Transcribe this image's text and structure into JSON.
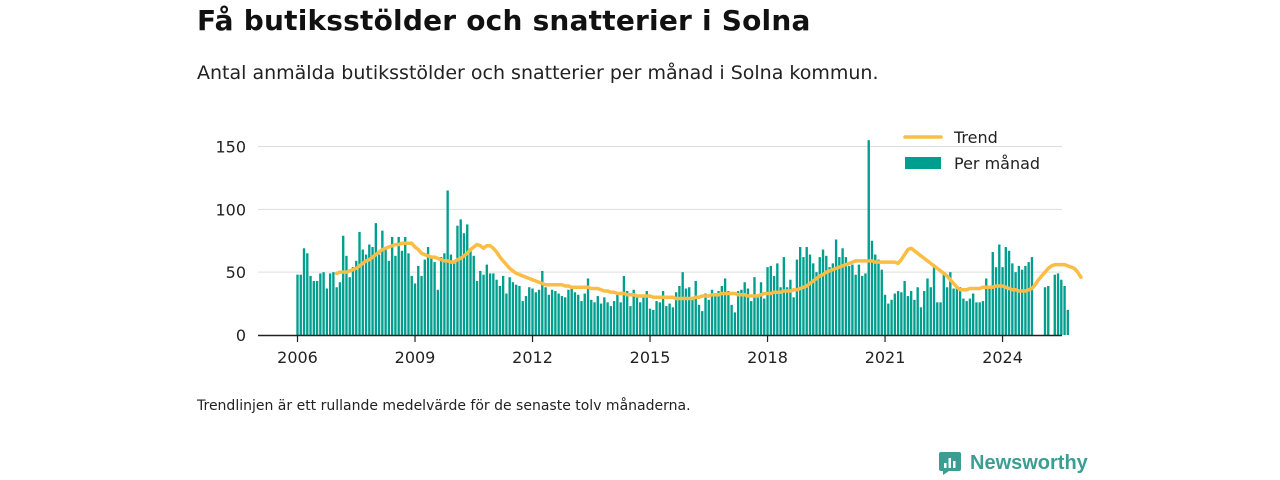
{
  "header": {
    "title": "Få butiksstölder och snatterier i Solna",
    "subtitle": "Antal anmälda butiksstölder och snatterier per månad i Solna kommun."
  },
  "footer": {
    "note": "Trendlinjen är ett rullande medelvärde för de senaste tolv månaderna.",
    "brand": "Newsworthy"
  },
  "colors": {
    "bars": "#009e8e",
    "trend": "#fbbd45",
    "grid": "#dddddd",
    "brand": "#3b9e93"
  },
  "chart_data": {
    "type": "bar",
    "x_start": "2006-01",
    "x_end": "2024-07",
    "xticks": [
      "2006",
      "2009",
      "2012",
      "2015",
      "2018",
      "2021",
      "2024"
    ],
    "yticks": [
      "0",
      "50",
      "100",
      "150"
    ],
    "ylim": [
      0,
      160
    ],
    "grid": true,
    "legend_position": "top-right",
    "series": [
      {
        "name": "Per månad",
        "type": "bar",
        "values": [
          48,
          48,
          69,
          65,
          47,
          43,
          43,
          49,
          50,
          37,
          49,
          50,
          38,
          42,
          79,
          63,
          46,
          54,
          59,
          82,
          68,
          64,
          72,
          70,
          89,
          64,
          83,
          68,
          59,
          78,
          63,
          78,
          67,
          78,
          65,
          47,
          41,
          55,
          47,
          60,
          70,
          62,
          58,
          36,
          62,
          65,
          115,
          64,
          57,
          87,
          92,
          81,
          88,
          67,
          63,
          43,
          51,
          48,
          56,
          49,
          49,
          44,
          39,
          47,
          33,
          46,
          42,
          40,
          39,
          27,
          31,
          38,
          37,
          34,
          36,
          51,
          38,
          32,
          36,
          35,
          33,
          31,
          30,
          36,
          38,
          34,
          32,
          27,
          33,
          45,
          28,
          26,
          31,
          25,
          30,
          26,
          23,
          27,
          33,
          26,
          47,
          35,
          23,
          36,
          30,
          26,
          32,
          35,
          21,
          20,
          27,
          26,
          35,
          23,
          25,
          22,
          34,
          39,
          50,
          37,
          38,
          30,
          43,
          24,
          19,
          33,
          28,
          36,
          33,
          35,
          39,
          45,
          35,
          24,
          18,
          35,
          36,
          42,
          37,
          27,
          46,
          31,
          42,
          29,
          54,
          55,
          47,
          57,
          38,
          62,
          38,
          44,
          30,
          60,
          70,
          62,
          70,
          64,
          57,
          50,
          62,
          68,
          63,
          54,
          57,
          76,
          62,
          69,
          62,
          55,
          56,
          48,
          56,
          47,
          49,
          155,
          75,
          64,
          60,
          52,
          32,
          25,
          28,
          33,
          35,
          34,
          43,
          31,
          35,
          28,
          38,
          22,
          35,
          45,
          38,
          54,
          26,
          26,
          50,
          38,
          50,
          37,
          38,
          38,
          29,
          27,
          29,
          33,
          26,
          26,
          27,
          45,
          39,
          66,
          54,
          72,
          54,
          70,
          67,
          57,
          50,
          55,
          52,
          55,
          58,
          62,
          0,
          0,
          0,
          38,
          39,
          0,
          48,
          49,
          44,
          39,
          20
        ]
      },
      {
        "name": "Trend",
        "type": "line",
        "start": "2007-01",
        "values": [
          49,
          50,
          50,
          50,
          51,
          52,
          53,
          55,
          57,
          59,
          60,
          62,
          64,
          66,
          68,
          69,
          70,
          71,
          72,
          72,
          73,
          73,
          73,
          73,
          70,
          68,
          65,
          64,
          63,
          62,
          62,
          61,
          60,
          59,
          59,
          58,
          58,
          60,
          61,
          63,
          65,
          68,
          70,
          72,
          71,
          69,
          71,
          71,
          69,
          66,
          62,
          59,
          56,
          53,
          51,
          49,
          48,
          47,
          46,
          45,
          44,
          43,
          42,
          41,
          40,
          40,
          40,
          40,
          40,
          40,
          39,
          39,
          38,
          38,
          38,
          38,
          38,
          38,
          37,
          37,
          37,
          36,
          35,
          35,
          34,
          34,
          33,
          33,
          33,
          32,
          32,
          32,
          31,
          31,
          31,
          31,
          31,
          30,
          30,
          30,
          30,
          30,
          30,
          30,
          29,
          29,
          29,
          29,
          29,
          29,
          30,
          30,
          31,
          31,
          31,
          32,
          32,
          32,
          33,
          33,
          33,
          33,
          33,
          32,
          32,
          32,
          31,
          31,
          31,
          31,
          32,
          33,
          33,
          33,
          34,
          34,
          34,
          35,
          35,
          35,
          36,
          36,
          37,
          38,
          39,
          41,
          43,
          45,
          47,
          48,
          50,
          51,
          52,
          53,
          54,
          55,
          56,
          57,
          58,
          59,
          59,
          59,
          59,
          59,
          59,
          58,
          58,
          58,
          58,
          58,
          58,
          58,
          57,
          60,
          64,
          68,
          69,
          67,
          65,
          63,
          61,
          59,
          57,
          55,
          53,
          51,
          49,
          47,
          44,
          41,
          38,
          36,
          36,
          36,
          37,
          37,
          37,
          37,
          38,
          38,
          38,
          38,
          39,
          39,
          39,
          38,
          37,
          36,
          36,
          35,
          35,
          35,
          36,
          37,
          40,
          44,
          47,
          50,
          53,
          55,
          56,
          56,
          56,
          56,
          55,
          54,
          53,
          50,
          46
        ]
      }
    ]
  }
}
